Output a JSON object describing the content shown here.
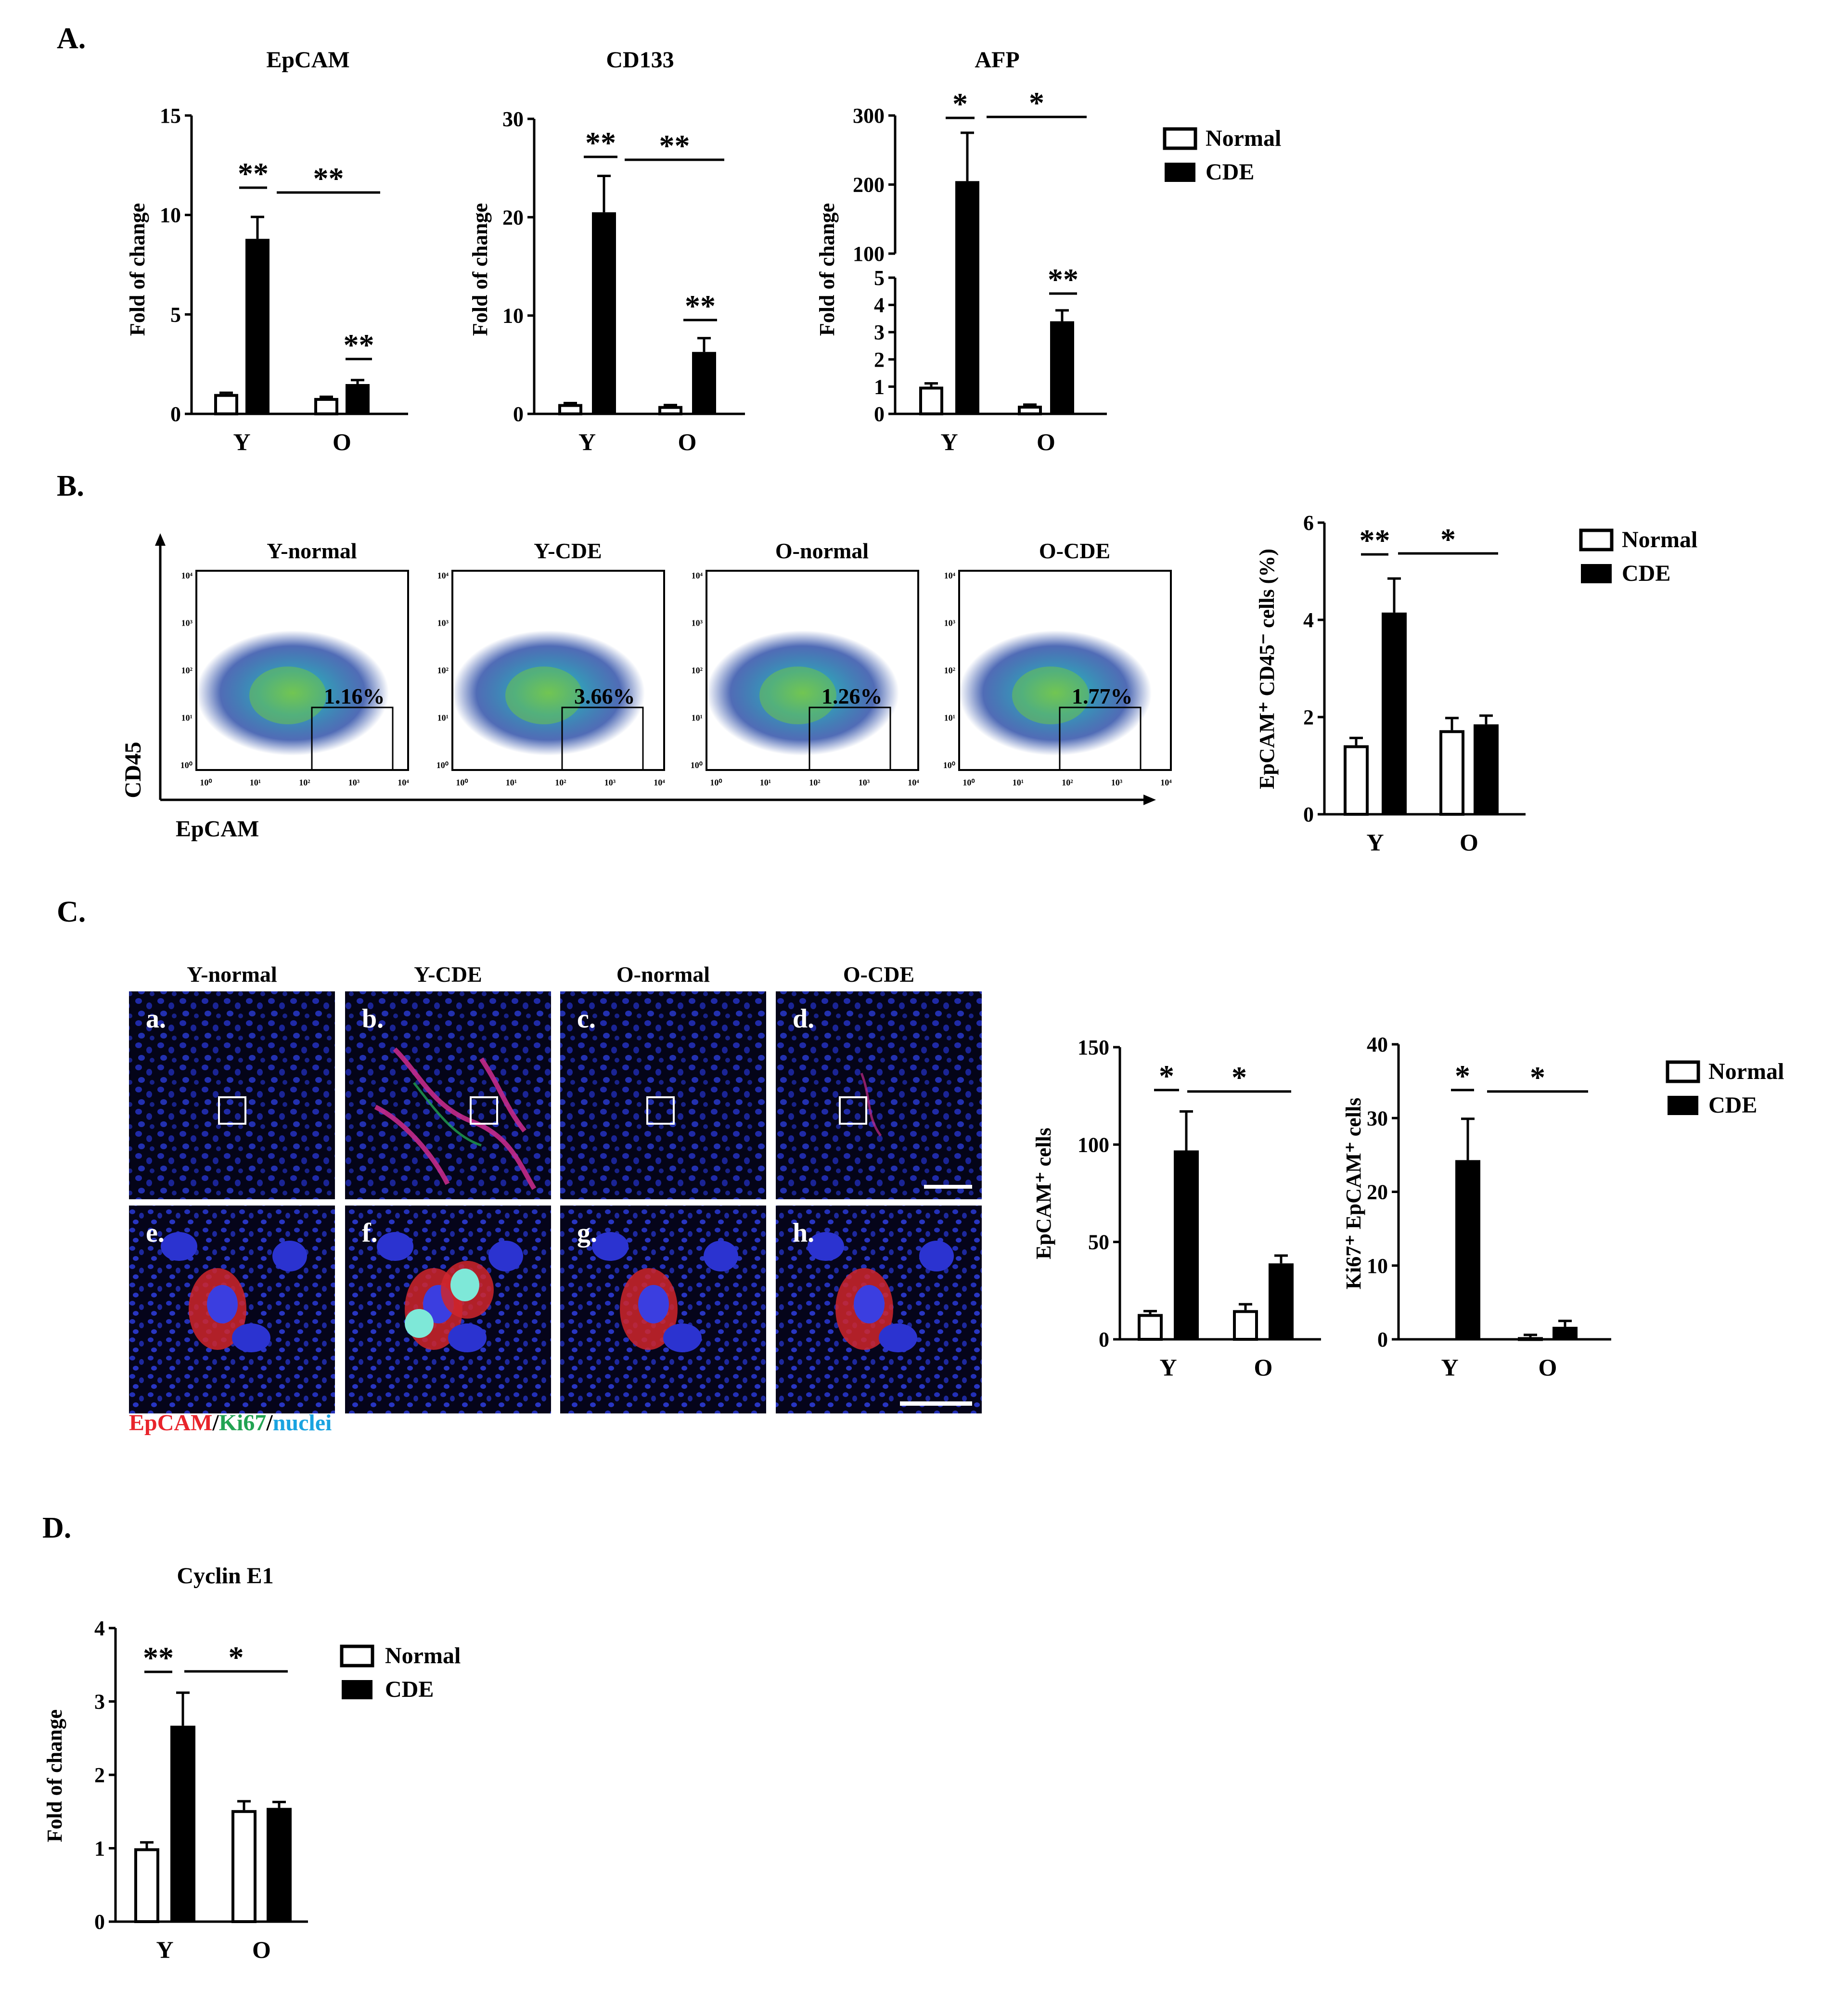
{
  "panels": {
    "A": "A.",
    "B": "B.",
    "C": "C.",
    "D": "D."
  },
  "legend": {
    "normal": "Normal",
    "cde": "CDE"
  },
  "chart_data": [
    {
      "id": "epcam",
      "type": "bar",
      "title": "EpCAM",
      "ylabel": "Fold of change",
      "categories": [
        "Y",
        "O"
      ],
      "ylim": [
        0,
        15
      ],
      "yticks": [
        "0",
        "5",
        "10",
        "15"
      ],
      "series": [
        {
          "name": "Normal",
          "values": [
            1.0,
            0.8
          ],
          "errors": [
            0.06,
            0.06
          ]
        },
        {
          "name": "CDE",
          "values": [
            8.8,
            1.5
          ],
          "errors": [
            1.1,
            0.2
          ]
        }
      ],
      "significance": [
        {
          "text": "**",
          "between": "Y-Normal vs Y-CDE"
        },
        {
          "text": "**",
          "between": "Y-CDE vs O-CDE"
        },
        {
          "text": "**",
          "between": "O-Normal vs O-CDE"
        }
      ]
    },
    {
      "id": "cd133",
      "type": "bar",
      "title": "CD133",
      "ylabel": "Fold of change",
      "categories": [
        "Y",
        "O"
      ],
      "ylim": [
        0,
        30
      ],
      "yticks": [
        "0",
        "10",
        "20",
        "30"
      ],
      "series": [
        {
          "name": "Normal",
          "values": [
            1.0,
            0.8
          ],
          "errors": [
            0.1,
            0.1
          ]
        },
        {
          "name": "CDE",
          "values": [
            20.5,
            6.3
          ],
          "errors": [
            3.7,
            1.4
          ]
        }
      ],
      "significance": [
        {
          "text": "**",
          "between": "Y-Normal vs Y-CDE"
        },
        {
          "text": "**",
          "between": "Y-CDE vs O-CDE"
        },
        {
          "text": "**",
          "between": "O-Normal vs O-CDE"
        }
      ]
    },
    {
      "id": "afp",
      "type": "bar",
      "title": "AFP",
      "ylabel": "Fold of change",
      "categories": [
        "Y",
        "O"
      ],
      "broken_axis": {
        "lower": [
          0,
          5
        ],
        "upper": [
          100,
          300
        ]
      },
      "yticks_lower": [
        "0",
        "1",
        "2",
        "3",
        "4",
        "5"
      ],
      "yticks_upper": [
        "100",
        "200",
        "300"
      ],
      "series": [
        {
          "name": "Normal",
          "values": [
            1.0,
            0.3
          ],
          "errors": [
            0.12,
            0.04
          ]
        },
        {
          "name": "CDE",
          "values": [
            205,
            3.4
          ],
          "errors": [
            70,
            0.4
          ]
        }
      ],
      "significance": [
        {
          "text": "*",
          "between": "Y-Normal vs Y-CDE"
        },
        {
          "text": "*",
          "between": "Y-CDE vs O-CDE"
        },
        {
          "text": "**",
          "between": "O-Normal vs O-CDE"
        }
      ]
    },
    {
      "id": "flow",
      "type": "bar",
      "ylabel": "EpCAM⁺ CD45⁻ cells (%)",
      "categories": [
        "Y",
        "O"
      ],
      "ylim": [
        0,
        6
      ],
      "yticks": [
        "0",
        "2",
        "4",
        "6"
      ],
      "series": [
        {
          "name": "Normal",
          "values": [
            1.42,
            1.73
          ],
          "errors": [
            0.15,
            0.25
          ]
        },
        {
          "name": "CDE",
          "values": [
            4.15,
            1.85
          ],
          "errors": [
            0.7,
            0.18
          ]
        }
      ],
      "significance": [
        {
          "text": "**",
          "between": "Y-Normal vs Y-CDE"
        },
        {
          "text": "*",
          "between": "Y-CDE vs O-CDE"
        }
      ]
    },
    {
      "id": "epcam-cells",
      "type": "bar",
      "ylabel": "EpCAM⁺ cells",
      "categories": [
        "Y",
        "O"
      ],
      "ylim": [
        0,
        150
      ],
      "yticks": [
        "0",
        "50",
        "100",
        "150"
      ],
      "series": [
        {
          "name": "Normal",
          "values": [
            13,
            15
          ],
          "errors": [
            1.5,
            3
          ]
        },
        {
          "name": "CDE",
          "values": [
            97,
            39
          ],
          "errors": [
            20,
            4
          ]
        }
      ],
      "significance": [
        {
          "text": "*",
          "between": "Y-Normal vs Y-CDE"
        },
        {
          "text": "*",
          "between": "Y-CDE vs O-CDE"
        }
      ]
    },
    {
      "id": "ki67",
      "type": "bar",
      "ylabel": "Ki67⁺ EpCAM⁺ cells",
      "categories": [
        "Y",
        "O"
      ],
      "ylim": [
        0,
        40
      ],
      "yticks": [
        "0",
        "10",
        "20",
        "30",
        "40"
      ],
      "series": [
        {
          "name": "Normal",
          "values": [
            0,
            0.3
          ],
          "errors": [
            0,
            0.3
          ]
        },
        {
          "name": "CDE",
          "values": [
            24.3,
            1.7
          ],
          "errors": [
            5.6,
            0.8
          ]
        }
      ],
      "significance": [
        {
          "text": "*",
          "between": "Y-Normal vs Y-CDE"
        },
        {
          "text": "*",
          "between": "Y-CDE vs O-CDE"
        }
      ]
    },
    {
      "id": "cyclin",
      "type": "bar",
      "title": "Cyclin E1",
      "ylabel": "Fold of change",
      "categories": [
        "Y",
        "O"
      ],
      "ylim": [
        0,
        4
      ],
      "yticks": [
        "0",
        "1",
        "2",
        "3",
        "4"
      ],
      "series": [
        {
          "name": "Normal",
          "values": [
            1.0,
            1.52
          ],
          "errors": [
            0.08,
            0.12
          ]
        },
        {
          "name": "CDE",
          "values": [
            2.67,
            1.55
          ],
          "errors": [
            0.45,
            0.08
          ]
        }
      ],
      "significance": [
        {
          "text": "**",
          "between": "Y-Normal vs Y-CDE"
        },
        {
          "text": "*",
          "between": "Y-CDE vs O-CDE"
        }
      ]
    }
  ],
  "flow_panels": {
    "x_axis_label": "EpCAM",
    "y_axis_label": "CD45",
    "tick_labels": [
      "10⁰",
      "10¹",
      "10²",
      "10³",
      "10⁴"
    ],
    "plots": [
      {
        "title": "Y-normal",
        "percent": "1.16%"
      },
      {
        "title": "Y-CDE",
        "percent": "3.66%"
      },
      {
        "title": "O-normal",
        "percent": "1.26%"
      },
      {
        "title": "O-CDE",
        "percent": "1.77%"
      }
    ]
  },
  "micro_panels": {
    "columns": [
      "Y-normal",
      "Y-CDE",
      "O-normal",
      "O-CDE"
    ],
    "top_letters": [
      "a.",
      "b.",
      "c.",
      "d."
    ],
    "bottom_letters": [
      "e.",
      "f.",
      "g.",
      "h."
    ],
    "stain_legend": {
      "epcam": "EpCAM",
      "sep1": "/",
      "ki67": "Ki67",
      "sep2": "/",
      "nuclei": "nuclei"
    },
    "colors": {
      "epcam": "#e8242b",
      "ki67": "#22a352",
      "nuclei": "#1aa3e0"
    }
  }
}
